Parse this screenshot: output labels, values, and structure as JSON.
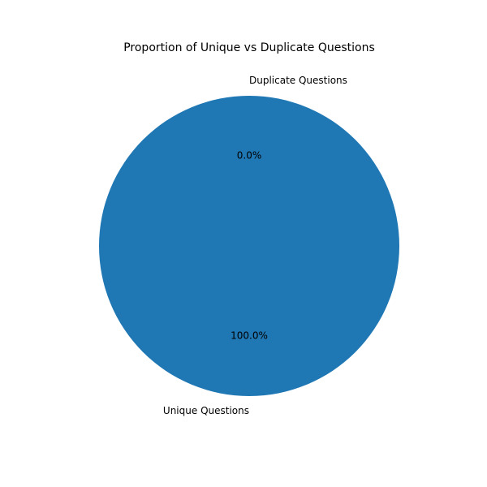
{
  "chart_data": {
    "type": "pie",
    "title": "Proportion of Unique vs Duplicate Questions",
    "labels": [
      "Unique Questions",
      "Duplicate Questions"
    ],
    "values": [
      100.0,
      0.0
    ],
    "percent_labels": [
      "100.0%",
      "0.0%"
    ],
    "colors": [
      "#1f77b4",
      "#ff7f0e"
    ],
    "start_angle_deg": 90,
    "direction": "counterclockwise"
  }
}
